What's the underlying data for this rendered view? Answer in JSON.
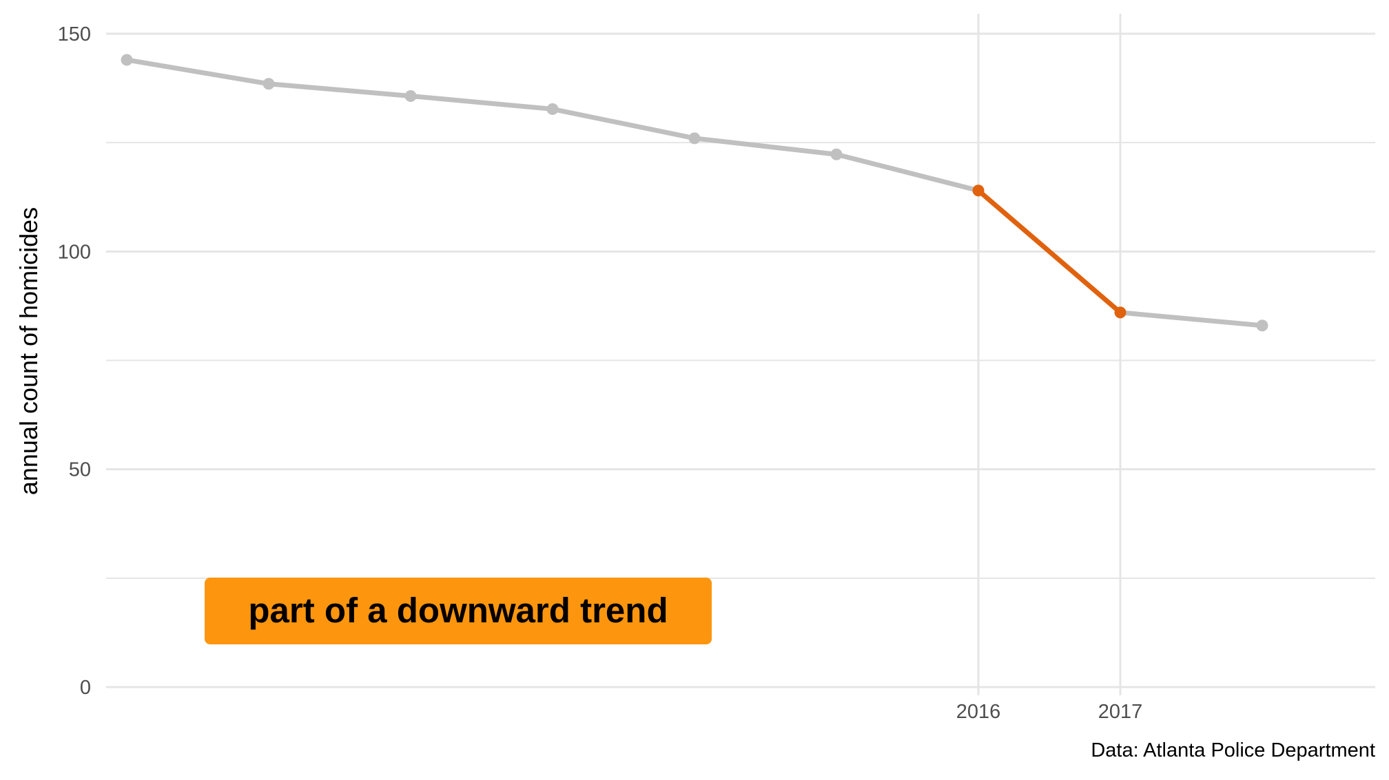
{
  "chart_data": {
    "type": "line",
    "title": "",
    "xlabel": "",
    "ylabel": "annual count of homicides",
    "caption": "Data: Atlanta Police Department",
    "x": [
      2010,
      2011,
      2012,
      2013,
      2014,
      2015,
      2016,
      2017,
      2018
    ],
    "xlim": [
      2009.8,
      2018.8
    ],
    "x_ticks": [
      2016,
      2017
    ],
    "x_tick_labels": [
      "2016",
      "2017"
    ],
    "ylim": [
      0,
      150
    ],
    "y_ticks": [
      0,
      50,
      100,
      150
    ],
    "y_tick_labels": [
      "0",
      "50",
      "100",
      "150"
    ],
    "y_minor_gridlines": [
      25,
      75,
      125
    ],
    "grid": true,
    "series": [
      {
        "values": [
          144,
          138.5,
          135.7,
          132.7,
          126,
          122.3,
          114,
          86,
          83
        ],
        "color": "#c0c0c0"
      }
    ],
    "highlight": {
      "from": 2016,
      "to": 2017,
      "color": "#e0620d"
    },
    "annotation": {
      "text": "part of a downward trend",
      "fill": "#fd960e"
    },
    "colors": {
      "gridline": "#e5e5e5",
      "tick_text": "#4d4d4d",
      "background": "#ffffff"
    }
  }
}
